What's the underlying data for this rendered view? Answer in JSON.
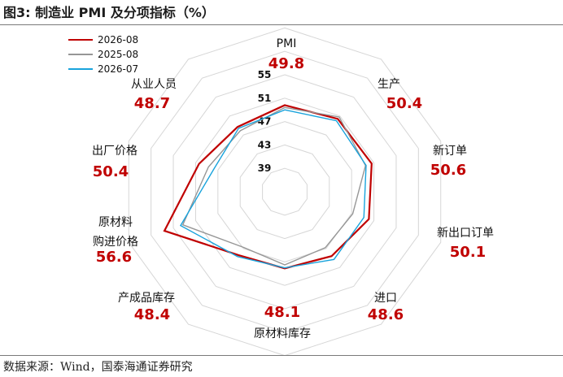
{
  "title": "图3:  制造业 PMI 及分项指标（%）",
  "source": "数据来源：Wind，国泰海通证券研究",
  "legend": [
    {
      "label": "2026-08",
      "color": "#c00000"
    },
    {
      "label": "2025-08",
      "color": "#969696"
    },
    {
      "label": "2026-07",
      "color": "#19a3dc"
    }
  ],
  "chart_data": {
    "type": "radar",
    "title": "",
    "range": [
      35,
      55
    ],
    "ticks": [
      39,
      43,
      47,
      51,
      55
    ],
    "grid": true,
    "legend_position": "top-left",
    "label_color": "#c00000",
    "axes": [
      {
        "label": "PMI",
        "value": "49.8"
      },
      {
        "label": "生产",
        "value": "50.4"
      },
      {
        "label": "新订单",
        "value": "50.6"
      },
      {
        "label": "新出口订单",
        "value": "50.1"
      },
      {
        "label": "进口",
        "value": "48.6"
      },
      {
        "label": "原材料库存",
        "value": "48.1"
      },
      {
        "label": "产成品库存",
        "value": "48.4"
      },
      {
        "label": "原材料\n购进价格",
        "value": "56.6"
      },
      {
        "label": "出厂价格",
        "value": "50.4"
      },
      {
        "label": "从业人员",
        "value": "48.7"
      }
    ],
    "series": [
      {
        "name": "2026-08",
        "color": "#c00000",
        "width": 2.2,
        "values": [
          49.8,
          50.4,
          50.6,
          50.1,
          48.6,
          48.1,
          48.4,
          56.6,
          50.4,
          48.7
        ]
      },
      {
        "name": "2025-08",
        "color": "#969696",
        "width": 1.4,
        "values": [
          49.4,
          50.8,
          49.5,
          47.2,
          46.8,
          47.5,
          46.8,
          53.3,
          48.7,
          47.9
        ]
      },
      {
        "name": "2026-07",
        "color": "#19a3dc",
        "width": 1.4,
        "values": [
          49.0,
          50.0,
          49.6,
          49.2,
          49.3,
          48.0,
          48.7,
          53.7,
          47.7,
          48.4
        ]
      }
    ]
  }
}
